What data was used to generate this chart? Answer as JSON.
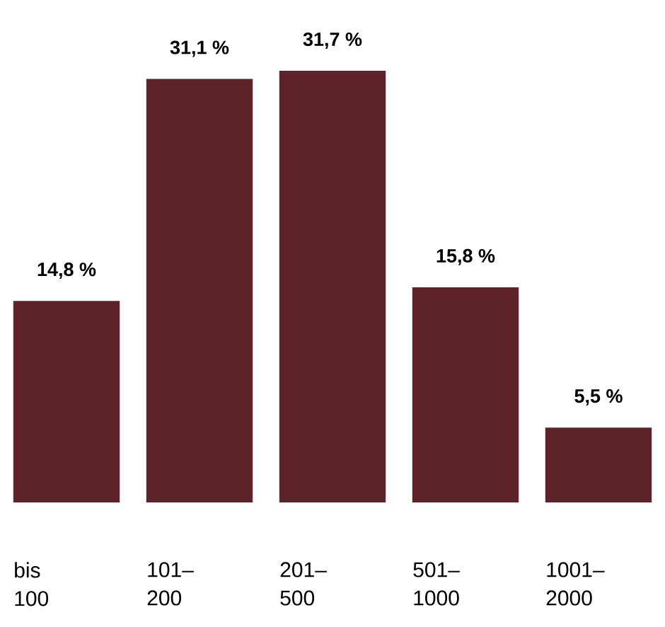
{
  "chart_data": {
    "type": "bar",
    "categories": [
      "bis 100",
      "101–200",
      "201–500",
      "501–1000",
      "1001–2000"
    ],
    "values": [
      14.8,
      31.1,
      31.7,
      15.8,
      5.5
    ],
    "value_labels": [
      "14,8 %",
      "31,1 %",
      "31,7 %",
      "15,8 %",
      "5,5 %"
    ],
    "color": "#5e2229"
  }
}
